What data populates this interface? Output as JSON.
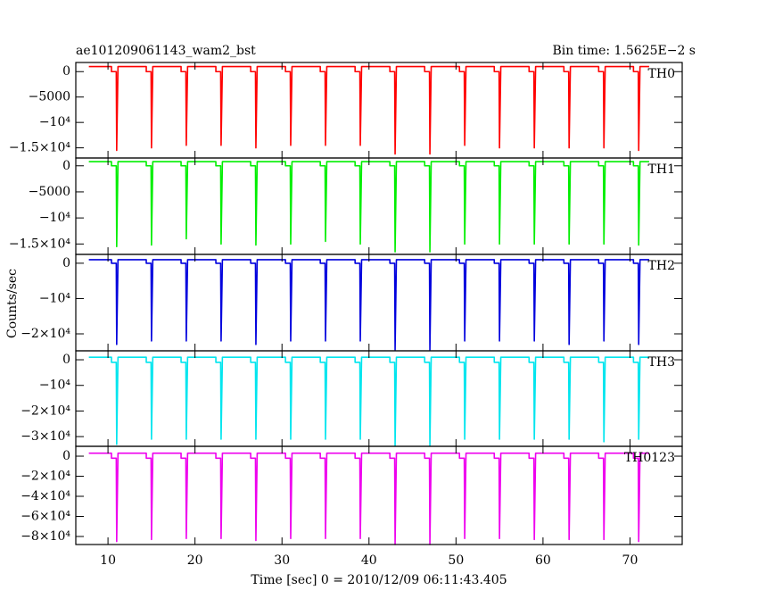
{
  "chart_data": {
    "type": "line",
    "title": "ae101209061143_wam2_bst",
    "subtitle": "Bin time: 1.5625E−2 s",
    "ylabel": "Counts/sec",
    "xlabel": "Time [sec] 0 = 2010/12/09 06:11:43.405",
    "xlim": [
      6.3,
      76
    ],
    "xticks": [
      10,
      20,
      30,
      40,
      50,
      60,
      70
    ],
    "x": [
      7.8,
      10.4,
      10.4,
      10.95,
      11,
      11.15,
      14.4,
      14.4,
      14.95,
      15,
      15.15,
      18.4,
      18.4,
      18.95,
      19,
      19.15,
      22.4,
      22.4,
      22.95,
      23,
      23.15,
      26.4,
      26.4,
      26.95,
      27,
      27.15,
      30.4,
      30.4,
      30.95,
      31,
      31.15,
      34.4,
      34.4,
      34.95,
      35,
      35.15,
      38.4,
      38.4,
      38.95,
      39,
      39.15,
      42.4,
      42.4,
      42.95,
      43,
      43.15,
      46.4,
      46.4,
      46.95,
      47,
      47.15,
      50.4,
      50.4,
      50.95,
      51,
      51.15,
      54.4,
      54.4,
      54.95,
      55,
      55.15,
      58.4,
      58.4,
      58.95,
      59,
      59.15,
      62.4,
      62.4,
      62.95,
      63,
      63.15,
      66.4,
      66.4,
      66.95,
      67,
      67.15,
      70.4,
      70.4,
      70.95,
      71,
      71.15,
      72.2
    ],
    "series": [
      {
        "name": "TH0",
        "color": "#ff0000",
        "ylim": [
          -17000,
          1800
        ],
        "yticks": [
          0,
          {
            "value": -5000,
            "label": "−5000"
          },
          {
            "value": -10000,
            "label": "−10⁴"
          },
          {
            "value": -15000,
            "label": "−1.5×10⁴"
          }
        ],
        "values": [
          1000,
          1000,
          0,
          0,
          -15500,
          1000,
          1000,
          0,
          0,
          -15000,
          1000,
          1000,
          0,
          0,
          -14500,
          1000,
          1000,
          0,
          0,
          -14500,
          1000,
          1000,
          0,
          0,
          -15000,
          1000,
          1000,
          0,
          0,
          -14500,
          1000,
          1000,
          0,
          0,
          -14500,
          1000,
          1000,
          0,
          0,
          -14500,
          1000,
          1000,
          0,
          0,
          -16200,
          1000,
          1000,
          0,
          0,
          -16200,
          1000,
          1000,
          0,
          0,
          -14500,
          1000,
          1000,
          0,
          0,
          -15000,
          1000,
          1000,
          0,
          0,
          -15000,
          1000,
          1000,
          0,
          0,
          -15000,
          1000,
          1000,
          0,
          0,
          -15000,
          1000,
          1000,
          0,
          0,
          -15500,
          1000,
          1000
        ]
      },
      {
        "name": "TH1",
        "color": "#00ee00",
        "ylim": [
          -17000,
          1500
        ],
        "yticks": [
          0,
          {
            "value": -5000,
            "label": "−5000"
          },
          {
            "value": -10000,
            "label": "−10⁴"
          },
          {
            "value": -15000,
            "label": "−1.5×10⁴"
          }
        ],
        "values": [
          800,
          800,
          0,
          0,
          -15500,
          800,
          800,
          0,
          0,
          -15200,
          800,
          800,
          0,
          0,
          -14000,
          800,
          800,
          0,
          0,
          -15000,
          800,
          800,
          0,
          0,
          -15200,
          800,
          800,
          0,
          0,
          -15000,
          800,
          800,
          0,
          0,
          -14500,
          800,
          800,
          0,
          0,
          -15000,
          800,
          800,
          0,
          0,
          -16500,
          800,
          800,
          0,
          0,
          -16500,
          800,
          800,
          0,
          0,
          -15000,
          800,
          800,
          0,
          0,
          -15000,
          800,
          800,
          0,
          0,
          -15000,
          800,
          800,
          0,
          0,
          -15000,
          800,
          800,
          0,
          0,
          -15000,
          800,
          800,
          0,
          0,
          -15200,
          800,
          800
        ]
      },
      {
        "name": "TH2",
        "color": "#0000dd",
        "ylim": [
          -24800,
          2500
        ],
        "yticks": [
          0,
          {
            "value": -10000,
            "label": "−10⁴"
          },
          {
            "value": -20000,
            "label": "−2×10⁴"
          }
        ],
        "values": [
          1000,
          1000,
          0,
          0,
          -23000,
          1000,
          1000,
          0,
          0,
          -22000,
          1000,
          1000,
          0,
          0,
          -22000,
          1000,
          1000,
          0,
          0,
          -22000,
          1000,
          1000,
          0,
          0,
          -23000,
          1000,
          1000,
          0,
          0,
          -22000,
          1000,
          1000,
          0,
          0,
          -22000,
          1000,
          1000,
          0,
          0,
          -22000,
          1000,
          1000,
          0,
          0,
          -24500,
          1000,
          1000,
          0,
          0,
          -24500,
          1000,
          1000,
          0,
          0,
          -22000,
          1000,
          1000,
          0,
          0,
          -22000,
          1000,
          1000,
          0,
          0,
          -22000,
          1000,
          1000,
          0,
          0,
          -23000,
          1000,
          1000,
          0,
          0,
          -22000,
          1000,
          1000,
          0,
          0,
          -23000,
          1000,
          1000
        ]
      },
      {
        "name": "TH3",
        "color": "#00e5ee",
        "ylim": [
          -33800,
          3500
        ],
        "yticks": [
          0,
          {
            "value": -10000,
            "label": "−10⁴"
          },
          {
            "value": -20000,
            "label": "−2×10⁴"
          },
          {
            "value": -30000,
            "label": "−3×10⁴"
          }
        ],
        "values": [
          1000,
          1000,
          -1000,
          -1000,
          -33000,
          1000,
          1000,
          -1000,
          -1000,
          -31000,
          1000,
          1000,
          -1000,
          -1000,
          -31000,
          1000,
          1000,
          -1000,
          -1000,
          -31000,
          1000,
          1000,
          -1000,
          -1000,
          -31000,
          1000,
          1000,
          -1000,
          -1000,
          -31000,
          1000,
          1000,
          -1000,
          -1000,
          -31000,
          1000,
          1000,
          -1000,
          -1000,
          -31000,
          1000,
          1000,
          -1000,
          -1000,
          -33500,
          1000,
          1000,
          -1000,
          -1000,
          -33500,
          1000,
          1000,
          -1000,
          -1000,
          -31000,
          1000,
          1000,
          -1000,
          -1000,
          -31000,
          1000,
          1000,
          -1000,
          -1000,
          -31000,
          1000,
          1000,
          -1000,
          -1000,
          -31000,
          1000,
          1000,
          -1000,
          -1000,
          -32000,
          1000,
          1000,
          -1000,
          -1000,
          -31000,
          1000,
          1000
        ]
      },
      {
        "name": "TH0123",
        "color": "#ee00ee",
        "ylim": [
          -88000,
          9800
        ],
        "yticks": [
          0,
          {
            "value": -20000,
            "label": "−2×10⁴"
          },
          {
            "value": -40000,
            "label": "−4×10⁴"
          },
          {
            "value": -60000,
            "label": "−6×10⁴"
          },
          {
            "value": -80000,
            "label": "−8×10⁴"
          }
        ],
        "values": [
          3000,
          3000,
          -2000,
          -2000,
          -85000,
          3000,
          3000,
          -2000,
          -2000,
          -83000,
          3000,
          3000,
          -2000,
          -2000,
          -82000,
          3000,
          3000,
          -2000,
          -2000,
          -82000,
          3000,
          3000,
          -2000,
          -2000,
          -84000,
          3000,
          3000,
          -2000,
          -2000,
          -82000,
          3000,
          3000,
          -2000,
          -2000,
          -82000,
          3000,
          3000,
          -2000,
          -2000,
          -82000,
          3000,
          3000,
          -2000,
          -2000,
          -88000,
          3000,
          3000,
          -2000,
          -2000,
          -88000,
          3000,
          3000,
          -2000,
          -2000,
          -82000,
          3000,
          3000,
          -2000,
          -2000,
          -82000,
          3000,
          3000,
          -2000,
          -2000,
          -83000,
          3000,
          3000,
          -2000,
          -2000,
          -83000,
          3000,
          3000,
          -2000,
          -2000,
          -83000,
          3000,
          3000,
          -2000,
          -2000,
          -85000,
          3000,
          3000
        ]
      }
    ]
  }
}
